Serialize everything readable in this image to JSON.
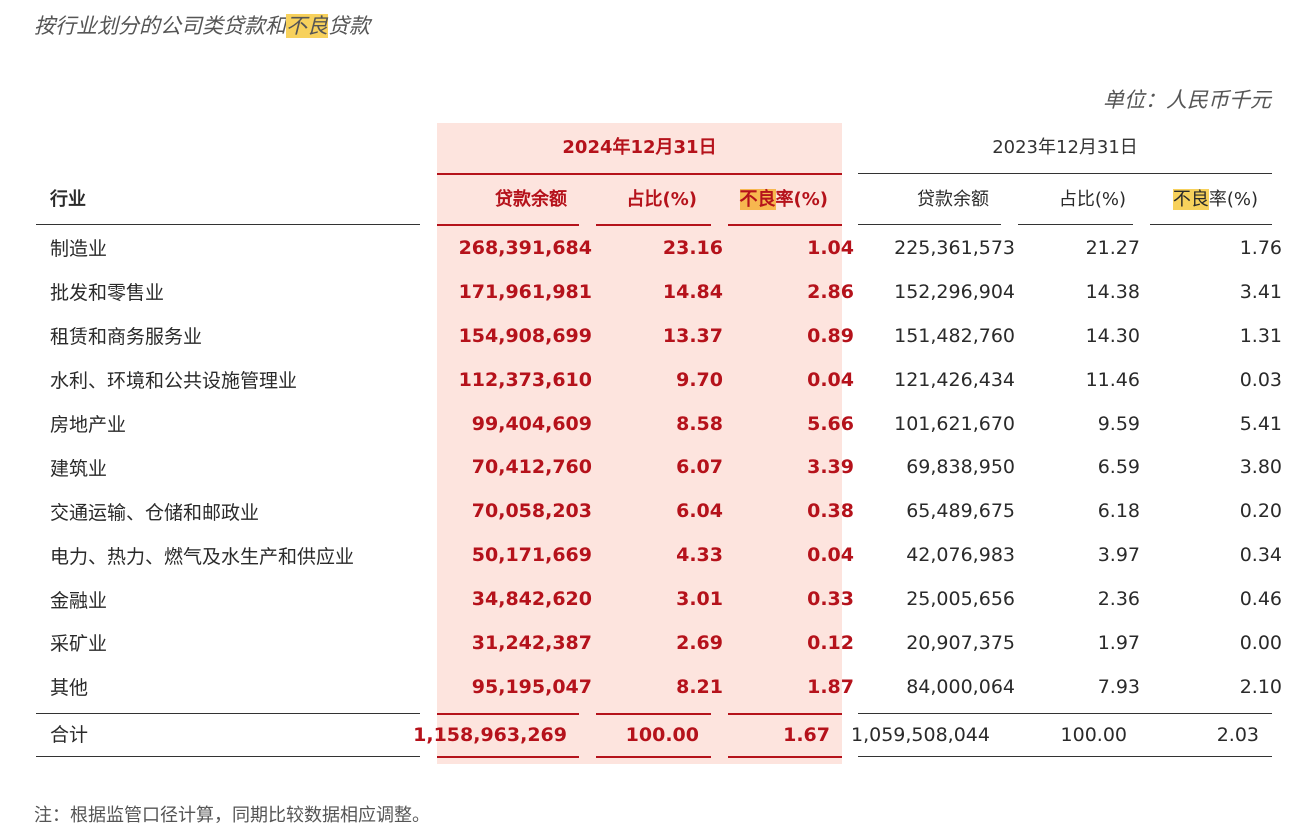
{
  "title": {
    "pre": "按行业划分的公司类贷款和",
    "highlight": "不良",
    "post": "贷款"
  },
  "unit": "单位：人民币千元",
  "headers": {
    "period_2024": "2024年12月31日",
    "period_2023": "2023年12月31日",
    "industry": "行业",
    "loan_balance": "贷款余额",
    "share": "占比(%)",
    "npl_hl": "不良",
    "npl_rest": "率(%)"
  },
  "rows": [
    {
      "name": "制造业",
      "l24": "268,391,684",
      "s24": "23.16",
      "n24": "1.04",
      "l23": "225,361,573",
      "s23": "21.27",
      "n23": "1.76"
    },
    {
      "name": "批发和零售业",
      "l24": "171,961,981",
      "s24": "14.84",
      "n24": "2.86",
      "l23": "152,296,904",
      "s23": "14.38",
      "n23": "3.41"
    },
    {
      "name": "租赁和商务服务业",
      "l24": "154,908,699",
      "s24": "13.37",
      "n24": "0.89",
      "l23": "151,482,760",
      "s23": "14.30",
      "n23": "1.31"
    },
    {
      "name": "水利、环境和公共设施管理业",
      "l24": "112,373,610",
      "s24": "9.70",
      "n24": "0.04",
      "l23": "121,426,434",
      "s23": "11.46",
      "n23": "0.03"
    },
    {
      "name": "房地产业",
      "l24": "99,404,609",
      "s24": "8.58",
      "n24": "5.66",
      "l23": "101,621,670",
      "s23": "9.59",
      "n23": "5.41"
    },
    {
      "name": "建筑业",
      "l24": "70,412,760",
      "s24": "6.07",
      "n24": "3.39",
      "l23": "69,838,950",
      "s23": "6.59",
      "n23": "3.80"
    },
    {
      "name": "交通运输、仓储和邮政业",
      "l24": "70,058,203",
      "s24": "6.04",
      "n24": "0.38",
      "l23": "65,489,675",
      "s23": "6.18",
      "n23": "0.20"
    },
    {
      "name": "电力、热力、燃气及水生产和供应业",
      "l24": "50,171,669",
      "s24": "4.33",
      "n24": "0.04",
      "l23": "42,076,983",
      "s23": "3.97",
      "n23": "0.34"
    },
    {
      "name": "金融业",
      "l24": "34,842,620",
      "s24": "3.01",
      "n24": "0.33",
      "l23": "25,005,656",
      "s23": "2.36",
      "n23": "0.46"
    },
    {
      "name": "采矿业",
      "l24": "31,242,387",
      "s24": "2.69",
      "n24": "0.12",
      "l23": "20,907,375",
      "s23": "1.97",
      "n23": "0.00"
    },
    {
      "name": "其他",
      "l24": "95,195,047",
      "s24": "8.21",
      "n24": "1.87",
      "l23": "84,000,064",
      "s23": "7.93",
      "n23": "2.10"
    }
  ],
  "total": {
    "name": "合计",
    "l24": "1,158,963,269",
    "s24": "100.00",
    "n24": "1.67",
    "l23": "1,059,508,044",
    "s23": "100.00",
    "n23": "2.03"
  },
  "note": "注：根据监管口径计算，同期比较数据相应调整。"
}
